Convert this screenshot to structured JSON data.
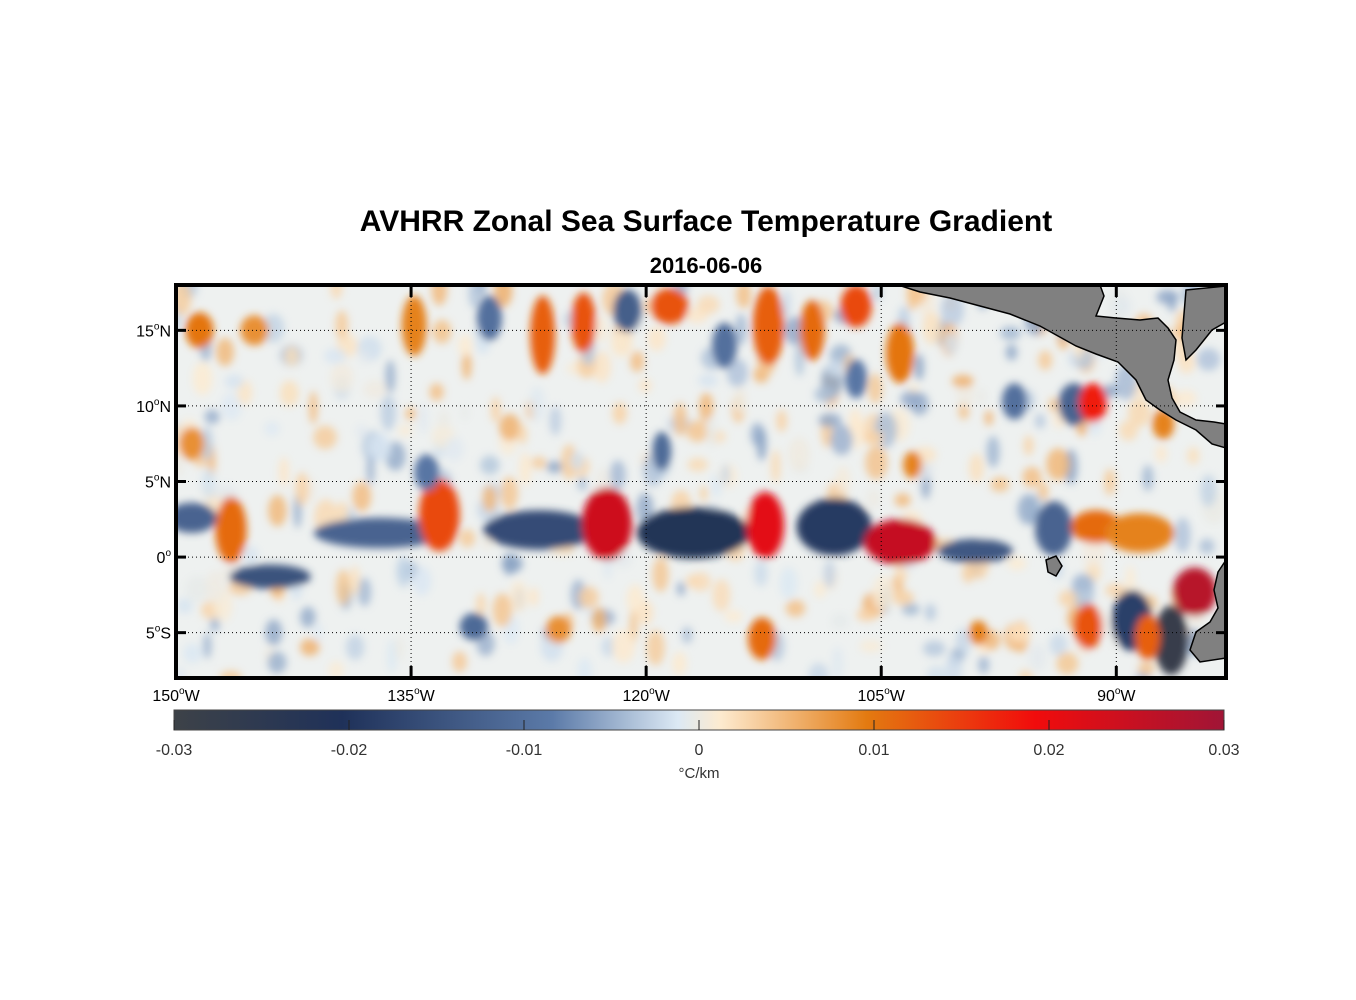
{
  "title": "AVHRR Zonal Sea Surface Temperature Gradient",
  "subtitle": "2016-06-06",
  "map": {
    "lon_range": [
      -150,
      -83
    ],
    "lat_range": [
      -8,
      18
    ],
    "lon_ticks": [
      {
        "value": -150,
        "deg": "150",
        "hemi": "W"
      },
      {
        "value": -135,
        "deg": "135",
        "hemi": "W"
      },
      {
        "value": -120,
        "deg": "120",
        "hemi": "W"
      },
      {
        "value": -105,
        "deg": "105",
        "hemi": "W"
      },
      {
        "value": -90,
        "deg": "90",
        "hemi": "W"
      }
    ],
    "lat_ticks": [
      {
        "value": 15,
        "deg": "15",
        "hemi": "N"
      },
      {
        "value": 10,
        "deg": "10",
        "hemi": "N"
      },
      {
        "value": 5,
        "deg": "5",
        "hemi": "N"
      },
      {
        "value": 0,
        "deg": "0",
        "hemi": ""
      },
      {
        "value": -5,
        "deg": "5",
        "hemi": "S"
      }
    ],
    "grid": "dotted",
    "land_color": "#808080",
    "features": [
      {
        "lon": -146.5,
        "lat": 1.8,
        "v": 0.011,
        "rx": 1.0,
        "ry": 2.2
      },
      {
        "lon": -149.0,
        "lat": 2.6,
        "v": -0.012,
        "rx": 1.6,
        "ry": 1.0
      },
      {
        "lon": -144.0,
        "lat": -1.3,
        "v": -0.015,
        "rx": 2.6,
        "ry": 0.8
      },
      {
        "lon": -137.0,
        "lat": 1.6,
        "v": -0.012,
        "rx": 4.2,
        "ry": 1.0
      },
      {
        "lon": -133.2,
        "lat": 2.8,
        "v": 0.014,
        "rx": 1.3,
        "ry": 2.4
      },
      {
        "lon": -126.8,
        "lat": 1.8,
        "v": -0.016,
        "rx": 3.6,
        "ry": 1.3
      },
      {
        "lon": -122.5,
        "lat": 2.2,
        "v": 0.024,
        "rx": 1.6,
        "ry": 2.4
      },
      {
        "lon": -117.0,
        "lat": 1.6,
        "v": -0.022,
        "rx": 3.6,
        "ry": 1.7
      },
      {
        "lon": -112.4,
        "lat": 2.1,
        "v": 0.021,
        "rx": 1.2,
        "ry": 2.2
      },
      {
        "lon": -108.0,
        "lat": 2.0,
        "v": -0.019,
        "rx": 2.4,
        "ry": 1.9
      },
      {
        "lon": -103.8,
        "lat": 1.0,
        "v": 0.025,
        "rx": 2.3,
        "ry": 1.5
      },
      {
        "lon": -99.0,
        "lat": 0.4,
        "v": -0.014,
        "rx": 2.4,
        "ry": 0.8
      },
      {
        "lon": -94.0,
        "lat": 1.9,
        "v": -0.012,
        "rx": 1.2,
        "ry": 1.8
      },
      {
        "lon": -91.3,
        "lat": 2.0,
        "v": 0.011,
        "rx": 1.6,
        "ry": 1.1
      },
      {
        "lon": -88.5,
        "lat": 1.6,
        "v": 0.009,
        "rx": 2.2,
        "ry": 1.3
      },
      {
        "lon": -85.0,
        "lat": -2.3,
        "v": 0.027,
        "rx": 1.4,
        "ry": 1.6
      },
      {
        "lon": -86.5,
        "lat": -5.5,
        "v": -0.028,
        "rx": 1.1,
        "ry": 2.3
      },
      {
        "lon": -89.0,
        "lat": -4.2,
        "v": -0.018,
        "rx": 1.3,
        "ry": 2.0
      },
      {
        "lon": -91.8,
        "lat": -4.6,
        "v": 0.013,
        "rx": 0.9,
        "ry": 1.5
      },
      {
        "lon": -88.0,
        "lat": -5.3,
        "v": 0.012,
        "rx": 0.8,
        "ry": 1.5
      },
      {
        "lon": -92.7,
        "lat": 10.1,
        "v": -0.012,
        "rx": 1.0,
        "ry": 1.4
      },
      {
        "lon": -91.5,
        "lat": 10.2,
        "v": 0.018,
        "rx": 0.9,
        "ry": 1.3
      },
      {
        "lon": -103.8,
        "lat": 13.5,
        "v": 0.01,
        "rx": 0.9,
        "ry": 2.0
      },
      {
        "lon": -112.2,
        "lat": 15.3,
        "v": 0.012,
        "rx": 1.0,
        "ry": 2.6
      },
      {
        "lon": -109.4,
        "lat": 15.0,
        "v": 0.011,
        "rx": 0.8,
        "ry": 2.0
      },
      {
        "lon": -106.6,
        "lat": 16.6,
        "v": 0.014,
        "rx": 1.0,
        "ry": 1.4
      },
      {
        "lon": -118.5,
        "lat": 16.6,
        "v": 0.013,
        "rx": 1.2,
        "ry": 1.2
      },
      {
        "lon": -121.2,
        "lat": 16.3,
        "v": -0.013,
        "rx": 0.9,
        "ry": 1.4
      },
      {
        "lon": -126.6,
        "lat": 14.7,
        "v": 0.012,
        "rx": 0.8,
        "ry": 2.6
      },
      {
        "lon": -124.0,
        "lat": 15.5,
        "v": 0.013,
        "rx": 0.8,
        "ry": 2.0
      },
      {
        "lon": -134.8,
        "lat": 15.3,
        "v": 0.009,
        "rx": 0.8,
        "ry": 2.0
      },
      {
        "lon": -148.5,
        "lat": 15.0,
        "v": 0.01,
        "rx": 0.9,
        "ry": 1.2
      },
      {
        "lon": -145.0,
        "lat": 15.0,
        "v": 0.008,
        "rx": 0.9,
        "ry": 1.0
      },
      {
        "lon": -130.0,
        "lat": 15.8,
        "v": -0.01,
        "rx": 0.8,
        "ry": 1.5
      },
      {
        "lon": -115.0,
        "lat": 14.0,
        "v": -0.01,
        "rx": 0.8,
        "ry": 1.5
      },
      {
        "lon": -119.0,
        "lat": 7.0,
        "v": -0.011,
        "rx": 0.6,
        "ry": 1.3
      },
      {
        "lon": -106.6,
        "lat": 11.8,
        "v": -0.009,
        "rx": 0.7,
        "ry": 1.3
      },
      {
        "lon": -96.5,
        "lat": 10.3,
        "v": -0.01,
        "rx": 0.8,
        "ry": 1.2
      },
      {
        "lon": -87.0,
        "lat": 8.8,
        "v": 0.009,
        "rx": 0.7,
        "ry": 1.0
      },
      {
        "lon": -98.8,
        "lat": -5.0,
        "v": 0.009,
        "rx": 0.6,
        "ry": 0.8
      },
      {
        "lon": -112.6,
        "lat": -5.4,
        "v": 0.011,
        "rx": 0.9,
        "ry": 1.4
      },
      {
        "lon": -131.0,
        "lat": -4.6,
        "v": -0.011,
        "rx": 0.9,
        "ry": 0.9
      },
      {
        "lon": -125.6,
        "lat": -4.8,
        "v": 0.008,
        "rx": 0.8,
        "ry": 0.9
      },
      {
        "lon": -149.0,
        "lat": 7.5,
        "v": 0.008,
        "rx": 0.8,
        "ry": 1.1
      },
      {
        "lon": -103.0,
        "lat": 6.1,
        "v": 0.009,
        "rx": 0.6,
        "ry": 0.9
      },
      {
        "lon": -134.0,
        "lat": 5.6,
        "v": -0.009,
        "rx": 0.8,
        "ry": 1.2
      }
    ]
  },
  "colorbar": {
    "min": -0.03,
    "max": 0.03,
    "ticks": [
      "-0.03",
      "-0.02",
      "-0.01",
      "0",
      "0.01",
      "0.02",
      "0.03"
    ],
    "tick_values": [
      -0.03,
      -0.02,
      -0.01,
      0,
      0.01,
      0.02,
      0.03
    ],
    "label": "°C/km",
    "colors": [
      "#3d4248",
      "#1f3159",
      "#5b7aa8",
      "#dce9f4",
      "#fdebd0",
      "#e37a10",
      "#f10c0c",
      "#a01536"
    ]
  }
}
